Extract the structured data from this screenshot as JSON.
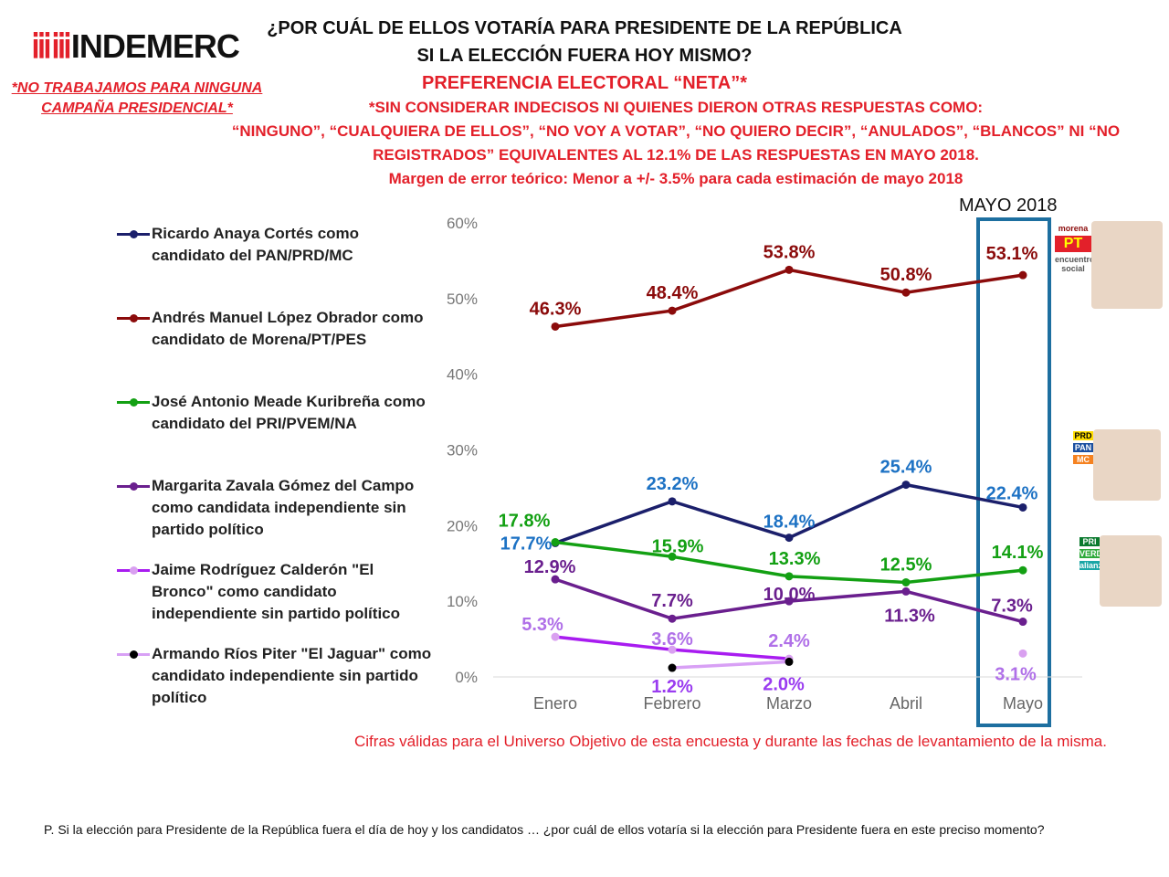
{
  "header": {
    "logo": "INDEMERC",
    "disclaimer": "*NO TRABAJAMOS PARA NINGUNA CAMPAÑA PRESIDENCIAL*",
    "title1": "¿POR CUÁL DE ELLOS VOTARÍA PARA PRESIDENTE DE LA REPÚBLICA",
    "title2": "SI LA ELECCIÓN FUERA HOY MISMO?",
    "subtitle": "PREFERENCIA ELECTORAL “NETA”*",
    "note1": "*SIN CONSIDERAR INDECISOS NI QUIENES DIERON OTRAS RESPUESTAS COMO:",
    "note2": "“NINGUNO”, “CUALQUIERA DE ELLOS”, “NO VOY A VOTAR”, “NO QUIERO DECIR”, “ANULADOS”, “BLANCOS” NI “NO",
    "note3": "REGISTRADOS” EQUIVALENTES AL 12.1% DE LAS RESPUESTAS EN MAYO 2018.",
    "margin": "Margen de error teórico: Menor a +/- 3.5% para cada estimación de mayo 2018"
  },
  "highlight_label": "MAYO 2018",
  "footer": "Cifras válidas para el Universo Objetivo de esta encuesta y durante las fechas de levantamiento de la misma.",
  "question": "P. Si la elección para Presidente de la República fuera el día de hoy y los candidatos … ¿por cuál de ellos votaría si la elección para Presidente fuera en este preciso momento?",
  "chart_data": {
    "type": "line",
    "categories": [
      "Enero",
      "Febrero",
      "Marzo",
      "Abril",
      "Mayo"
    ],
    "ylim": [
      0,
      60
    ],
    "yticks": [
      "0%",
      "10%",
      "20%",
      "30%",
      "40%",
      "50%",
      "60%"
    ],
    "series": [
      {
        "name": "Ricardo Anaya Cortés como candidato del PAN/PRD/MC",
        "color": "#1b1f6b",
        "label_color": "#1d72c4",
        "values": [
          17.7,
          23.2,
          18.4,
          25.4,
          22.4
        ],
        "labels": [
          "17.7%",
          "23.2%",
          "18.4%",
          "25.4%",
          "22.4%"
        ]
      },
      {
        "name": "Andrés Manuel López Obrador como candidato de Morena/PT/PES",
        "color": "#8b0b0b",
        "label_color": "#8b0b0b",
        "values": [
          46.3,
          48.4,
          53.8,
          50.8,
          53.1
        ],
        "labels": [
          "46.3%",
          "48.4%",
          "53.8%",
          "50.8%",
          "53.1%"
        ]
      },
      {
        "name": "José Antonio Meade Kuribreña como candidato del PRI/PVEM/NA",
        "color": "#13a013",
        "label_color": "#13a013",
        "values": [
          17.8,
          15.9,
          13.3,
          12.5,
          14.1
        ],
        "labels": [
          "17.8%",
          "15.9%",
          "13.3%",
          "12.5%",
          "14.1%"
        ]
      },
      {
        "name": "Margarita Zavala Gómez del Campo como candidata independiente sin partido político",
        "color": "#6a1f8e",
        "label_color": "#6a1f8e",
        "values": [
          12.9,
          7.7,
          10.0,
          11.3,
          7.3
        ],
        "labels": [
          "12.9%",
          "7.7%",
          "10.0%",
          "11.3%",
          "7.3%"
        ]
      },
      {
        "name": "Jaime Rodríguez Calderón \"El Bronco\" como candidato independiente sin partido político",
        "color": "#a81cf0",
        "point": "#d9a0f0",
        "label_color": "#b070e8",
        "values": [
          5.3,
          3.6,
          2.4,
          null,
          3.1
        ],
        "labels": [
          "5.3%",
          "3.6%",
          "2.4%",
          "",
          "3.1%"
        ]
      },
      {
        "name": "Armando Ríos Piter \"El Jaguar\" como candidato independiente sin partido político",
        "color": "#d8a0f5",
        "point": "#000000",
        "label_color": "#9a3cf0",
        "values": [
          null,
          1.2,
          2.0,
          null,
          null
        ],
        "labels": [
          "",
          "1.2%",
          "2.0%",
          "",
          ""
        ]
      }
    ]
  },
  "party_logos": {
    "amlo": [
      "morena",
      "PT",
      "encuentro social"
    ],
    "anaya": [
      "PRD",
      "PAN",
      "MC"
    ],
    "meade": [
      "PRI",
      "VERDE",
      "alianza"
    ]
  }
}
